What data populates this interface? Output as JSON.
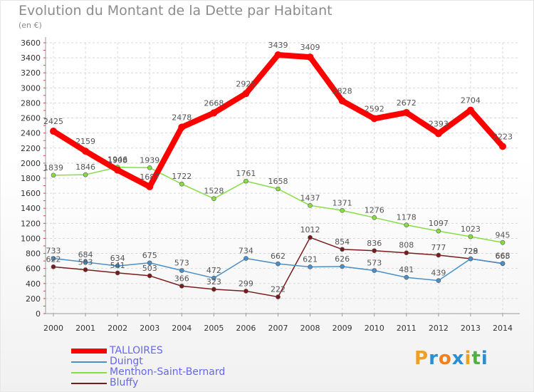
{
  "title": "Evolution du Montant de la Dette par Habitant",
  "subtitle": "(en €)",
  "logo": [
    "P",
    "r",
    "o",
    "x",
    "i",
    "t",
    "i"
  ],
  "chart_data": {
    "type": "line",
    "x": [
      "2000",
      "2001",
      "2002",
      "2003",
      "2004",
      "2005",
      "2006",
      "2007",
      "2008",
      "2009",
      "2010",
      "2011",
      "2012",
      "2013",
      "2014"
    ],
    "ylim": [
      0,
      3600
    ],
    "yticks": [
      0,
      200,
      400,
      600,
      800,
      1000,
      1200,
      1400,
      1600,
      1800,
      2000,
      2200,
      2400,
      2600,
      2800,
      3000,
      3200,
      3400,
      3600
    ],
    "grid": true,
    "legend_position": "bottom-left",
    "series": [
      {
        "name": "TALLOIRES",
        "color": "#ff0000",
        "values": [
          2425,
          2159,
          1908,
          1687,
          2478,
          2668,
          2925,
          3439,
          3409,
          2828,
          2592,
          2672,
          2393,
          2704,
          2223
        ]
      },
      {
        "name": "Duingt",
        "color": "#4a90c8",
        "values": [
          733,
          684,
          634,
          675,
          573,
          472,
          734,
          662,
          621,
          626,
          573,
          481,
          439,
          728,
          668
        ]
      },
      {
        "name": "Menthon-Saint-Bernard",
        "color": "#88dd44",
        "values": [
          1839,
          1846,
          1946,
          1939,
          1722,
          1528,
          1761,
          1658,
          1437,
          1371,
          1276,
          1178,
          1097,
          1023,
          945
        ]
      },
      {
        "name": "Bluffy",
        "color": "#7a1b1b",
        "values": [
          622,
          583,
          541,
          503,
          366,
          323,
          299,
          222,
          1012,
          854,
          836,
          808,
          777,
          729,
          665
        ]
      }
    ]
  }
}
